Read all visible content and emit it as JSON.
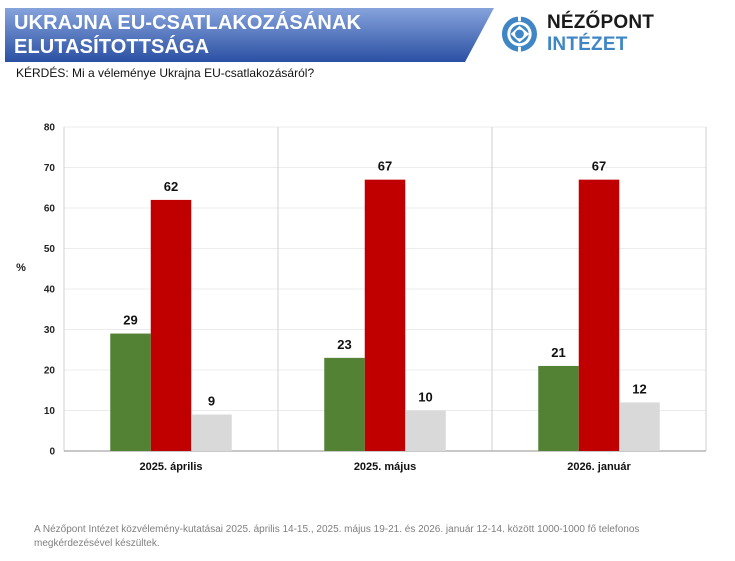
{
  "header": {
    "title_line1": "UKRAJNA EU-CSATLAKOZÁSÁNAK",
    "title_line2": "ELUTASÍTOTTSÁGA",
    "question": "KÉRDÉS: Mi a véleménye Ukrajna EU-csatlakozásáról?"
  },
  "logo": {
    "icon": "nezopont-logo-icon",
    "name_part1": "NÉZŐPONT",
    "name_part2": "INTÉZET",
    "color_primary": "#3f86c6"
  },
  "footnote": "A Nézőpont Intézet közvélemény-kutatásai 2025. április 14-15., 2025. május 19-21. és 2026. január 12-14. között 1000-1000 fő telefonos megkérdezésével készültek.",
  "colors": {
    "banner_top": "#86a3dc",
    "banner_bottom": "#2b50a3",
    "series": [
      "#548235",
      "#c00000",
      "#d9d9d9"
    ]
  },
  "chart_data": {
    "type": "bar",
    "title": "UKRAJNA EU-CSATLAKOZÁSÁNAK ELUTASÍTOTTSÁGA",
    "xlabel": "",
    "ylabel": "%",
    "ylim": [
      0,
      80
    ],
    "yticks": [
      "0",
      "10",
      "20",
      "30",
      "40",
      "50",
      "60",
      "70",
      "80"
    ],
    "categories": [
      "2025. április",
      "2025. május",
      "2026. január"
    ],
    "series": [
      {
        "name": "series-1",
        "color": "#548235",
        "values": [
          29,
          23,
          21
        ]
      },
      {
        "name": "series-2",
        "color": "#c00000",
        "values": [
          62,
          67,
          67
        ]
      },
      {
        "name": "series-3",
        "color": "#d9d9d9",
        "values": [
          9,
          10,
          12
        ]
      }
    ],
    "grid": true,
    "legend": "none"
  }
}
